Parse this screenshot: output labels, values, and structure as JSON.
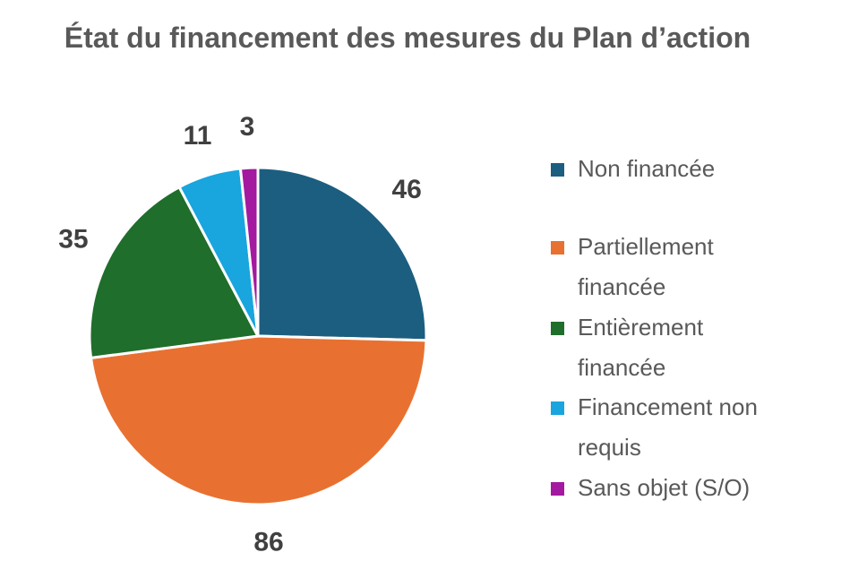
{
  "chart_data": {
    "type": "pie",
    "title": "État du financement des mesures du Plan d’action",
    "categories": [
      "Non financée",
      "Partiellement financée",
      "Entièrement financée",
      "Financement non requis",
      "Sans objet (S/O)"
    ],
    "values": [
      46,
      86,
      35,
      11,
      3
    ],
    "colors": [
      "#1b5e80",
      "#e87131",
      "#1f6e2b",
      "#19a5de",
      "#a3199f"
    ],
    "legend": "right"
  }
}
